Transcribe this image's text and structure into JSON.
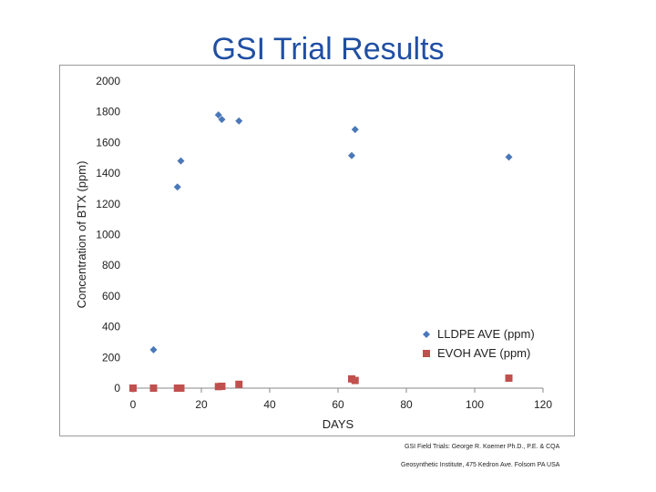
{
  "slide": {
    "title": "GSI Trial Results",
    "credit_line_1": "GSI Field Trials: George R. Koerner Ph.D., P.E. & CQA",
    "credit_line_2": "Geosynthetic Institute, 475 Kedron Ave. Folsom PA USA"
  },
  "colors": {
    "title": "#1f4fa3",
    "series_1": "#4a78b8",
    "series_2": "#c0504d"
  },
  "chart_data": {
    "type": "scatter",
    "title": "",
    "xlabel": "DAYS",
    "ylabel": "Concentration of BTX (ppm)",
    "xlim": [
      0,
      120
    ],
    "ylim": [
      0,
      2000
    ],
    "xticks": [
      0,
      20,
      40,
      60,
      80,
      100,
      120
    ],
    "yticks": [
      0,
      200,
      400,
      600,
      800,
      1000,
      1200,
      1400,
      1600,
      1800,
      2000
    ],
    "grid": false,
    "legend_position": "bottom-right",
    "series": [
      {
        "name": "LLDPE AVE (ppm)",
        "marker": "diamond",
        "x": [
          0,
          6,
          13,
          14,
          25,
          26,
          31,
          64,
          65,
          110
        ],
        "y": [
          0,
          250,
          1310,
          1480,
          1780,
          1750,
          1740,
          1515,
          1685,
          1505
        ]
      },
      {
        "name": "EVOH AVE (ppm)",
        "marker": "square",
        "x": [
          0,
          6,
          13,
          14,
          25,
          26,
          31,
          64,
          65,
          110
        ],
        "y": [
          0,
          0,
          0,
          0,
          10,
          12,
          25,
          60,
          50,
          65
        ]
      }
    ]
  }
}
